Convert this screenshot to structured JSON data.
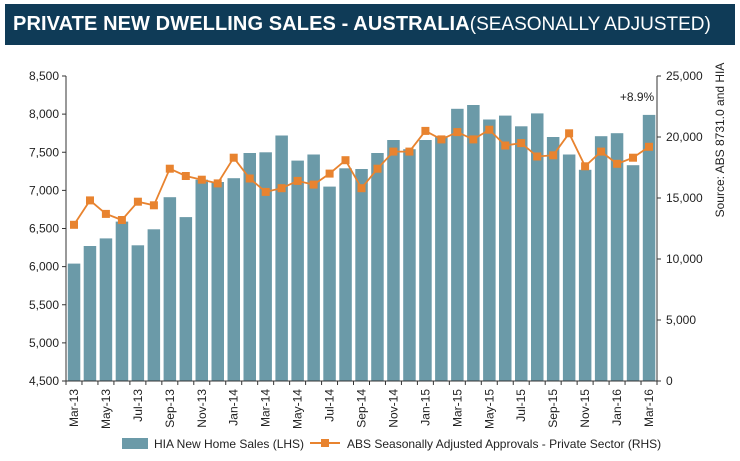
{
  "title": {
    "main": "PRIVATE NEW DWELLING SALES -  AUSTRALIA ",
    "sub": "(SEASONALLY ADJUSTED)"
  },
  "source": "Source: ABS 8731.0 and HIA",
  "annotation": "+8.9%",
  "colors": {
    "bars": "#6b9aa8",
    "line": "#e8832f",
    "title_bg": "#0f3b57"
  },
  "chart_data": {
    "type": "bar",
    "categories": [
      "Mar-13",
      "Apr-13",
      "May-13",
      "Jun-13",
      "Jul-13",
      "Aug-13",
      "Sep-13",
      "Oct-13",
      "Nov-13",
      "Dec-13",
      "Jan-14",
      "Feb-14",
      "Mar-14",
      "Apr-14",
      "May-14",
      "Jun-14",
      "Jul-14",
      "Aug-14",
      "Sep-14",
      "Oct-14",
      "Nov-14",
      "Dec-14",
      "Jan-15",
      "Feb-15",
      "Mar-15",
      "Apr-15",
      "May-15",
      "Jun-15",
      "Jul-15",
      "Aug-15",
      "Sep-15",
      "Oct-15",
      "Nov-15",
      "Dec-15",
      "Jan-16",
      "Feb-16",
      "Mar-16"
    ],
    "x_tick_labels": [
      "Mar-13",
      "May-13",
      "Jul-13",
      "Sep-13",
      "Nov-13",
      "Jan-14",
      "Mar-14",
      "May-14",
      "Jul-14",
      "Sep-14",
      "Nov-14",
      "Jan-15",
      "Mar-15",
      "May-15",
      "Jul-15",
      "Sep-15",
      "Nov-15",
      "Jan-16",
      "Mar-16"
    ],
    "series": [
      {
        "name": "HIA New Home Sales (LHS)",
        "axis": "left",
        "type": "bar",
        "values": [
          6040,
          6270,
          6370,
          6590,
          6280,
          6490,
          6910,
          6650,
          7140,
          7110,
          7160,
          7490,
          7500,
          7720,
          7390,
          7470,
          7050,
          7290,
          7280,
          7490,
          7660,
          7540,
          7660,
          7710,
          8070,
          8120,
          7930,
          7980,
          7840,
          8010,
          7700,
          7470,
          7270,
          7710,
          7750,
          7330,
          7990
        ]
      },
      {
        "name": "ABS Seasonally Adjusted Approvals - Private Sector (RHS)",
        "axis": "right",
        "type": "line",
        "values": [
          12800,
          14800,
          13700,
          13200,
          14700,
          14400,
          17400,
          16800,
          16500,
          16200,
          18300,
          16600,
          15500,
          15800,
          16400,
          16100,
          17000,
          18100,
          15800,
          17400,
          18800,
          18800,
          20500,
          19800,
          20400,
          19800,
          20600,
          19300,
          19500,
          18400,
          18500,
          20300,
          17600,
          18800,
          17800,
          18300,
          19200
        ]
      }
    ],
    "ylim_left": [
      4500,
      8500
    ],
    "yticks_left": [
      "4,500",
      "5,000",
      "5,500",
      "6,000",
      "6,500",
      "7,000",
      "7,500",
      "8,000",
      "8,500"
    ],
    "ylim_right": [
      0,
      25000
    ],
    "yticks_right": [
      "0",
      "5,000",
      "10,000",
      "15,000",
      "20,000",
      "25,000"
    ],
    "grid": false,
    "legend_position": "bottom"
  }
}
